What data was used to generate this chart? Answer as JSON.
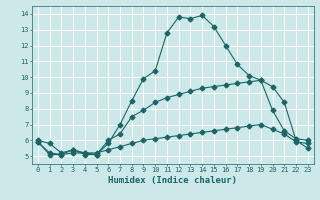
{
  "title": "",
  "xlabel": "Humidex (Indice chaleur)",
  "xlim": [
    -0.5,
    23.5
  ],
  "ylim": [
    4.5,
    14.5
  ],
  "xticks": [
    0,
    1,
    2,
    3,
    4,
    5,
    6,
    7,
    8,
    9,
    10,
    11,
    12,
    13,
    14,
    15,
    16,
    17,
    18,
    19,
    20,
    21,
    22,
    23
  ],
  "yticks": [
    5,
    6,
    7,
    8,
    9,
    10,
    11,
    12,
    13,
    14
  ],
  "bg_color": "#cce8e8",
  "line_color": "#1a6666",
  "grid_color": "#ffffff",
  "line1_x": [
    0,
    1,
    2,
    3,
    4,
    5,
    6,
    7,
    8,
    9,
    10,
    11,
    12,
    13,
    14,
    15,
    16,
    17,
    18,
    19,
    20,
    21,
    22,
    23
  ],
  "line1_y": [
    6.0,
    5.8,
    5.2,
    5.4,
    5.1,
    5.1,
    5.8,
    7.0,
    8.5,
    9.9,
    10.4,
    12.8,
    13.8,
    13.7,
    13.9,
    13.2,
    12.0,
    10.8,
    10.1,
    9.8,
    7.9,
    6.6,
    6.1,
    6.0
  ],
  "line2_x": [
    0,
    1,
    2,
    3,
    4,
    5,
    6,
    7,
    8,
    9,
    10,
    11,
    12,
    13,
    14,
    15,
    16,
    17,
    18,
    19,
    20,
    21,
    22,
    23
  ],
  "line2_y": [
    5.9,
    5.2,
    5.1,
    5.4,
    5.2,
    5.1,
    6.0,
    6.4,
    7.5,
    7.9,
    8.4,
    8.7,
    8.9,
    9.1,
    9.3,
    9.4,
    9.5,
    9.6,
    9.7,
    9.8,
    9.4,
    8.4,
    6.0,
    5.5
  ],
  "line3_x": [
    0,
    1,
    2,
    3,
    4,
    5,
    6,
    7,
    8,
    9,
    10,
    11,
    12,
    13,
    14,
    15,
    16,
    17,
    18,
    19,
    20,
    21,
    22,
    23
  ],
  "line3_y": [
    5.9,
    5.1,
    5.1,
    5.2,
    5.2,
    5.2,
    5.4,
    5.6,
    5.8,
    6.0,
    6.1,
    6.2,
    6.3,
    6.4,
    6.5,
    6.6,
    6.7,
    6.8,
    6.9,
    7.0,
    6.7,
    6.4,
    5.9,
    5.8
  ]
}
